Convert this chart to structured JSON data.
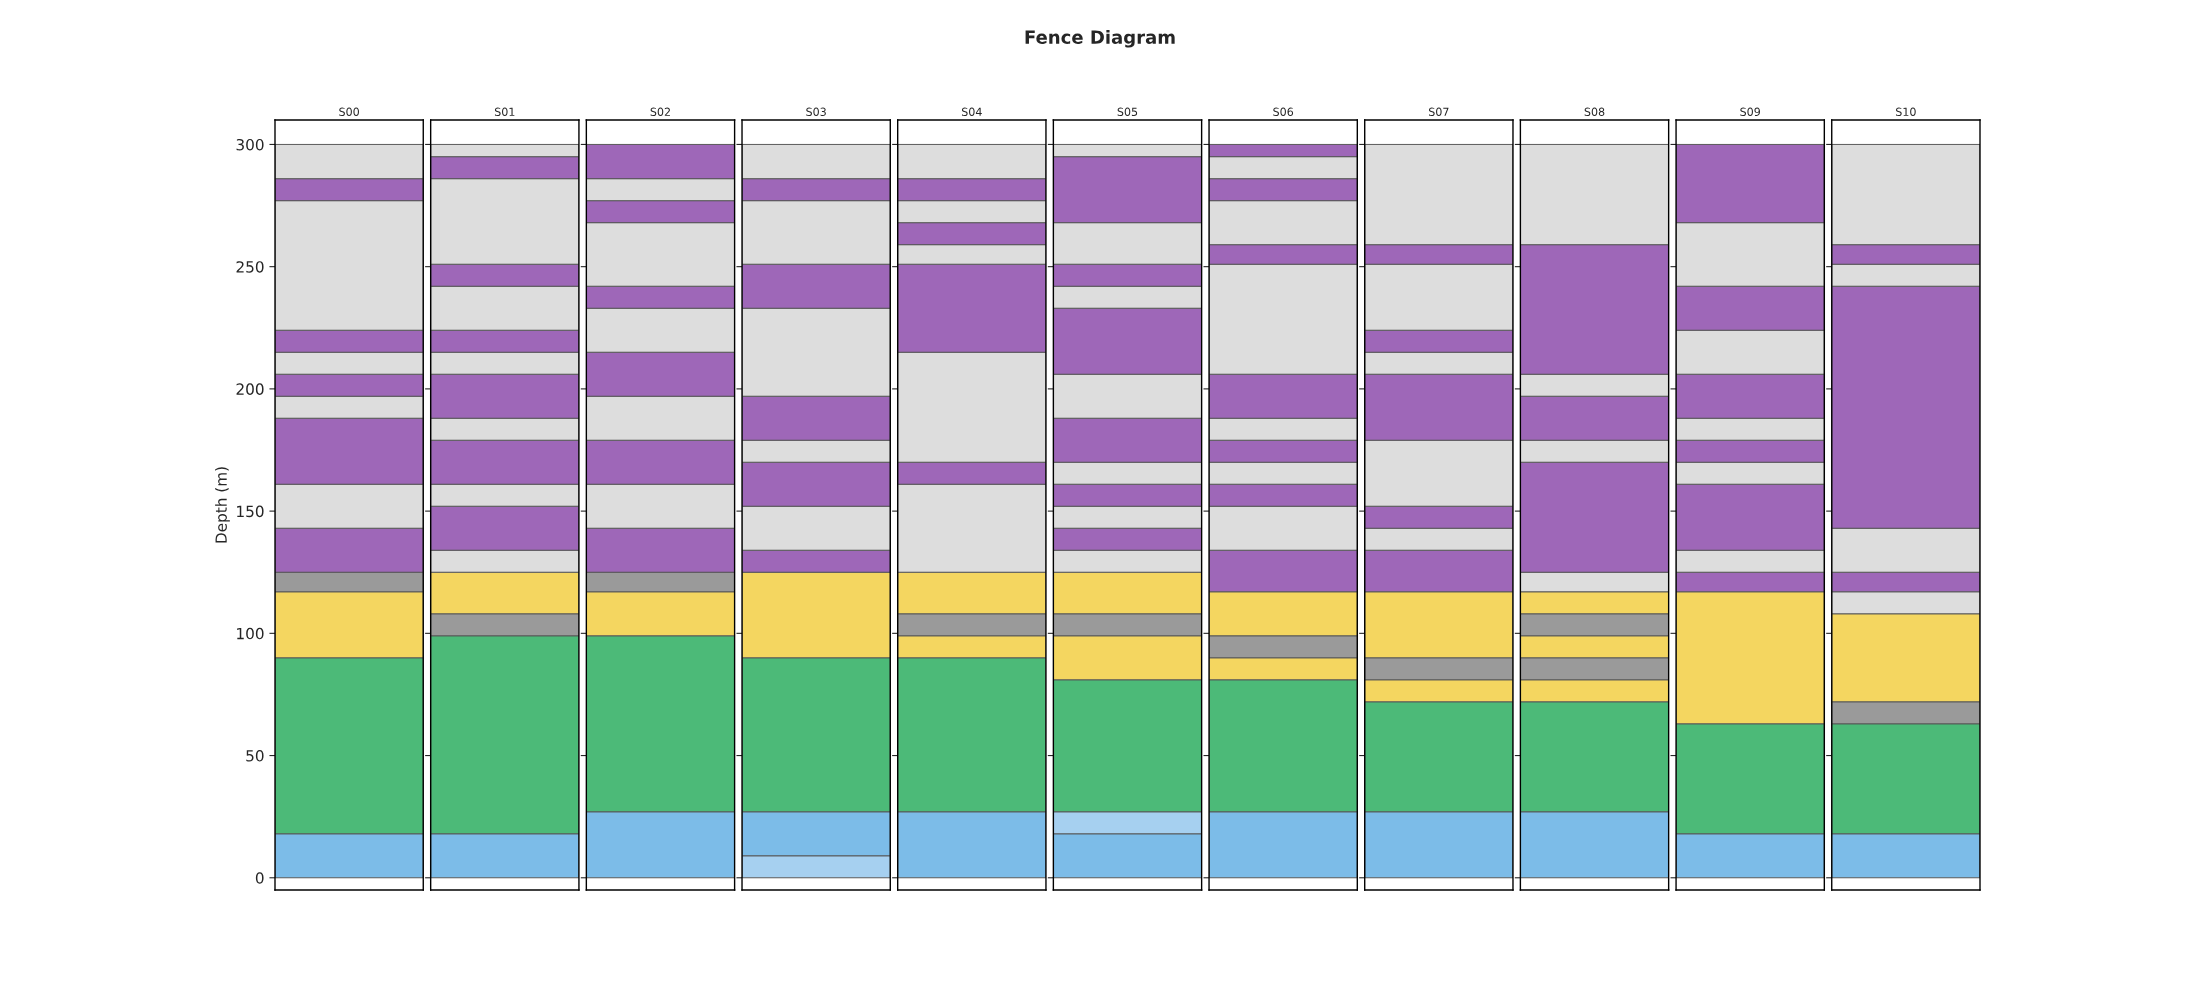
{
  "chart_data": {
    "type": "bar",
    "title": "Fence Diagram",
    "ylabel": "Depth (m)",
    "stacked": true,
    "ylim": [
      -5,
      310
    ],
    "yticks": [
      0,
      50,
      100,
      150,
      200,
      250,
      300
    ],
    "categories": [
      "S00",
      "S01",
      "S02",
      "S03",
      "S04",
      "S05",
      "S06",
      "S07",
      "S08",
      "S09",
      "S10"
    ],
    "series": [
      {
        "values": [
          18,
          18,
          27,
          9,
          27,
          18,
          27,
          27,
          27,
          18,
          18
        ],
        "colors": [
          "#7cbce8",
          "#7cbce8",
          "#7cbce8",
          "#a6d0f0",
          "#7cbce8",
          "#7cbce8",
          "#7cbce8",
          "#7cbce8",
          "#7cbce8",
          "#7cbce8",
          "#7cbce8"
        ]
      },
      {
        "values": [
          72,
          81,
          72,
          18,
          63,
          9,
          54,
          45,
          45,
          45,
          45
        ],
        "colors": [
          "#4cba78",
          "#4cba78",
          "#4cba78",
          "#7cbce8",
          "#4cba78",
          "#a6d0f0",
          "#4cba78",
          "#4cba78",
          "#4cba78",
          "#4cba78",
          "#4cba78"
        ]
      },
      {
        "values": [
          27,
          9,
          18,
          63,
          9,
          54,
          9,
          9,
          9,
          54,
          9
        ],
        "colors": [
          "#f4d660",
          "#9a9a9a",
          "#f4d660",
          "#4cba78",
          "#f4d660",
          "#4cba78",
          "#f4d660",
          "#f4d660",
          "#f4d660",
          "#f4d660",
          "#9a9a9a"
        ]
      },
      {
        "values": [
          8,
          17,
          8,
          35,
          9,
          18,
          9,
          9,
          9,
          8,
          36
        ],
        "colors": [
          "#9a9a9a",
          "#f4d660",
          "#9a9a9a",
          "#f4d660",
          "#9a9a9a",
          "#f4d660",
          "#9a9a9a",
          "#9a9a9a",
          "#9a9a9a",
          "#9e67b8",
          "#f4d660"
        ]
      },
      {
        "values": [
          18,
          9,
          18,
          9,
          17,
          9,
          18,
          27,
          9,
          9,
          9
        ],
        "colors": [
          "#9e67b8",
          "#dddddd",
          "#9e67b8",
          "#9e67b8",
          "#f4d660",
          "#9a9a9a",
          "#f4d660",
          "#f4d660",
          "#f4d660",
          "#dddddd",
          "#dddddd"
        ]
      },
      {
        "values": [
          18,
          18,
          18,
          18,
          36,
          17,
          17,
          17,
          9,
          27,
          8
        ],
        "colors": [
          "#dddddd",
          "#9e67b8",
          "#dddddd",
          "#dddddd",
          "#dddddd",
          "#f4d660",
          "#9e67b8",
          "#9e67b8",
          "#9a9a9a",
          "#9e67b8",
          "#9e67b8"
        ]
      },
      {
        "values": [
          27,
          9,
          18,
          18,
          9,
          9,
          18,
          9,
          9,
          9,
          18
        ],
        "colors": [
          "#9e67b8",
          "#dddddd",
          "#9e67b8",
          "#9e67b8",
          "#9e67b8",
          "#dddddd",
          "#dddddd",
          "#dddddd",
          "#f4d660",
          "#dddddd",
          "#dddddd"
        ]
      },
      {
        "values": [
          9,
          18,
          18,
          9,
          45,
          9,
          9,
          9,
          8,
          9,
          99
        ],
        "colors": [
          "#dddddd",
          "#9e67b8",
          "#dddddd",
          "#dddddd",
          "#dddddd",
          "#9e67b8",
          "#9e67b8",
          "#9e67b8",
          "#dddddd",
          "#9e67b8",
          "#9e67b8"
        ]
      },
      {
        "values": [
          9,
          9,
          18,
          18,
          36,
          9,
          9,
          27,
          45,
          9,
          9
        ],
        "colors": [
          "#9e67b8",
          "#dddddd",
          "#9e67b8",
          "#9e67b8",
          "#9e67b8",
          "#dddddd",
          "#dddddd",
          "#dddddd",
          "#9e67b8",
          "#dddddd",
          "#dddddd"
        ]
      },
      {
        "values": [
          9,
          18,
          18,
          36,
          8,
          9,
          9,
          27,
          9,
          18,
          8
        ],
        "colors": [
          "#dddddd",
          "#9e67b8",
          "#dddddd",
          "#dddddd",
          "#dddddd",
          "#9e67b8",
          "#9e67b8",
          "#9e67b8",
          "#dddddd",
          "#9e67b8",
          "#9e67b8"
        ]
      },
      {
        "values": [
          9,
          9,
          9,
          18,
          9,
          9,
          9,
          9,
          18,
          18,
          41
        ],
        "colors": [
          "#9e67b8",
          "#dddddd",
          "#9e67b8",
          "#9e67b8",
          "#9e67b8",
          "#dddddd",
          "#dddddd",
          "#dddddd",
          "#9e67b8",
          "#dddddd",
          "#dddddd"
        ]
      },
      {
        "values": [
          53,
          9,
          26,
          26,
          9,
          18,
          18,
          9,
          9,
          18,
          null
        ],
        "colors": [
          "#dddddd",
          "#9e67b8",
          "#dddddd",
          "#dddddd",
          "#dddddd",
          "#9e67b8",
          "#9e67b8",
          "#9e67b8",
          "#dddddd",
          "#9e67b8",
          null
        ]
      },
      {
        "values": [
          9,
          18,
          9,
          9,
          9,
          18,
          45,
          27,
          53,
          26,
          null
        ],
        "colors": [
          "#9e67b8",
          "#dddddd",
          "#9e67b8",
          "#9e67b8",
          "#9e67b8",
          "#dddddd",
          "#dddddd",
          "#dddddd",
          "#9e67b8",
          "#dddddd",
          null
        ]
      },
      {
        "values": [
          14,
          9,
          9,
          14,
          14,
          27,
          8,
          8,
          41,
          32,
          null
        ],
        "colors": [
          "#dddddd",
          "#9e67b8",
          "#dddddd",
          "#dddddd",
          "#dddddd",
          "#9e67b8",
          "#9e67b8",
          "#9e67b8",
          "#dddddd",
          "#9e67b8",
          null
        ]
      },
      {
        "values": [
          null,
          35,
          14,
          null,
          null,
          9,
          18,
          41,
          null,
          null,
          null
        ],
        "colors": [
          null,
          "#dddddd",
          "#9e67b8",
          null,
          null,
          "#dddddd",
          "#dddddd",
          "#dddddd",
          null,
          null,
          null
        ]
      },
      {
        "values": [
          null,
          9,
          null,
          null,
          null,
          9,
          9,
          null,
          null,
          null,
          null
        ],
        "colors": [
          null,
          "#9e67b8",
          null,
          null,
          null,
          "#9e67b8",
          "#9e67b8",
          null,
          null,
          null,
          null
        ]
      },
      {
        "values": [
          null,
          5,
          null,
          null,
          null,
          17,
          9,
          null,
          null,
          null,
          null
        ],
        "colors": [
          null,
          "#dddddd",
          null,
          null,
          null,
          "#dddddd",
          "#dddddd",
          null,
          null,
          null,
          null
        ]
      },
      {
        "values": [
          null,
          null,
          null,
          null,
          null,
          27,
          5,
          null,
          null,
          null,
          null
        ],
        "colors": [
          null,
          null,
          null,
          null,
          null,
          "#9e67b8",
          "#9e67b8",
          null,
          null,
          null,
          null
        ]
      },
      {
        "values": [
          null,
          null,
          null,
          null,
          null,
          5,
          null,
          null,
          null,
          null,
          null
        ],
        "colors": [
          null,
          null,
          null,
          null,
          null,
          "#dddddd",
          null,
          null,
          null,
          null,
          null
        ]
      }
    ]
  }
}
